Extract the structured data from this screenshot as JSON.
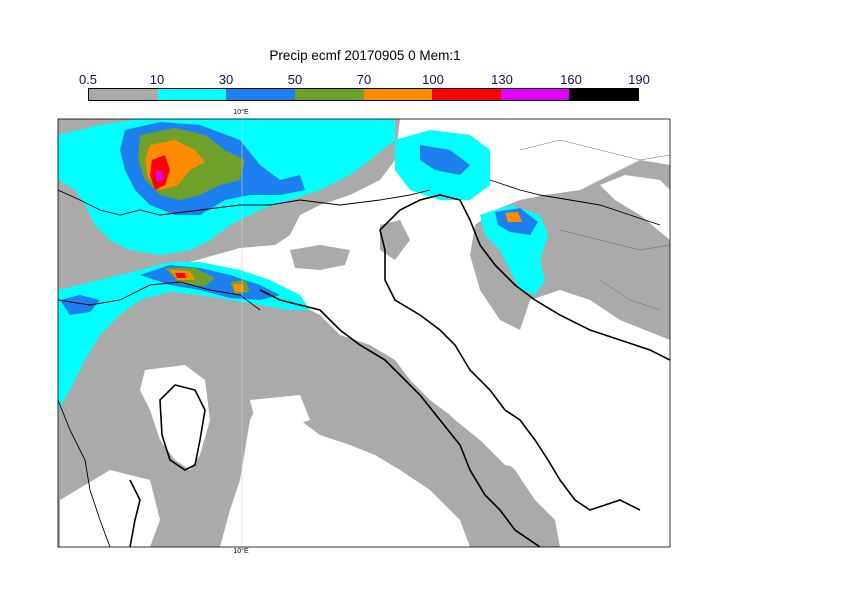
{
  "title": "Precip ecmf 20170905 0 Mem:1",
  "legend": {
    "ticks": [
      "0.5",
      "10",
      "30",
      "50",
      "70",
      "100",
      "130",
      "160",
      "190"
    ],
    "colors": [
      "#aaaaaa",
      "#00ffff",
      "#1e7ff0",
      "#6ea02a",
      "#ff8c00",
      "#ff0000",
      "#e000ff",
      "#000000"
    ],
    "tick_color": "#10105a"
  },
  "map": {
    "meridian_label": "10°E",
    "background": "#ffffff",
    "border_color": "#000000"
  }
}
